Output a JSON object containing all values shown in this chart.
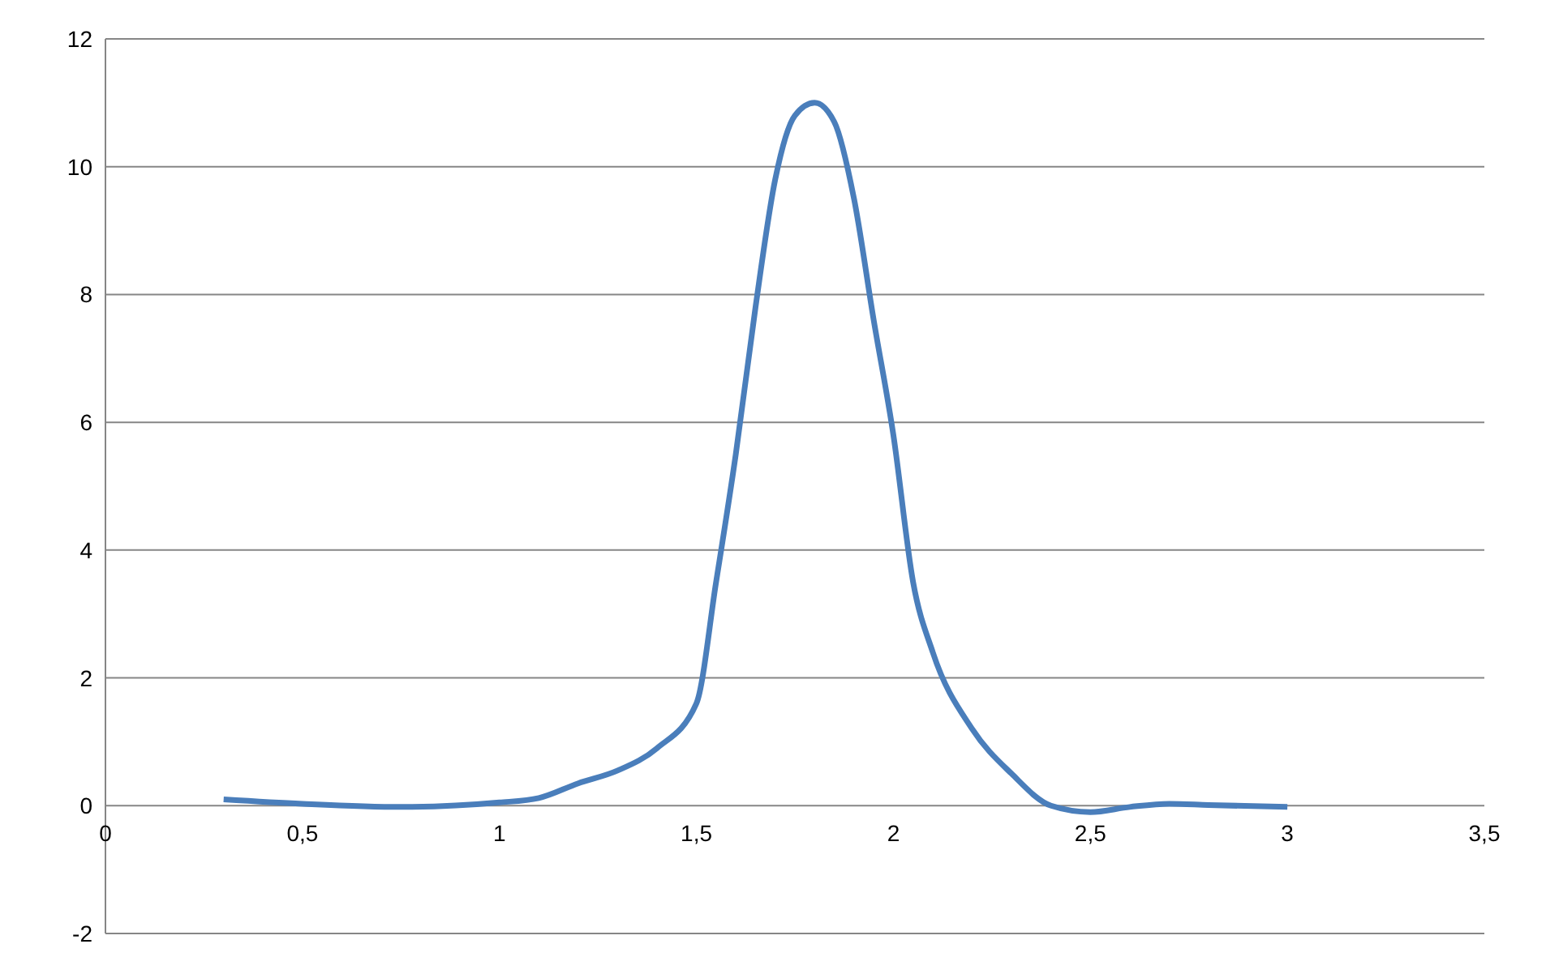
{
  "chart_data": {
    "type": "line",
    "x": [
      0.3,
      0.5,
      0.75,
      1.0,
      1.1,
      1.2,
      1.3,
      1.4,
      1.5,
      1.55,
      1.6,
      1.65,
      1.7,
      1.75,
      1.8,
      1.85,
      1.9,
      1.95,
      2.0,
      2.05,
      2.1,
      2.2,
      2.3,
      2.4,
      2.5,
      2.6,
      2.7,
      2.8,
      3.0
    ],
    "series": [
      {
        "color": "#4a7ebb",
        "values": [
          0.1,
          0.03,
          -0.02,
          0.05,
          0.12,
          0.35,
          0.55,
          0.9,
          1.6,
          3.5,
          5.5,
          7.8,
          9.8,
          10.8,
          11.0,
          10.7,
          9.5,
          7.6,
          5.8,
          3.5,
          2.4,
          1.2,
          0.5,
          0.0,
          -0.1,
          -0.02,
          0.03,
          0.01,
          -0.02
        ]
      }
    ],
    "xlim": [
      0,
      3.5
    ],
    "xticks": [
      0,
      {
        "value": 0.5,
        "label": "0,5"
      },
      1,
      {
        "value": 1.5,
        "label": "1,5"
      },
      2,
      {
        "value": 2.5,
        "label": "2,5"
      },
      3,
      {
        "value": 3.5,
        "label": "3,5"
      }
    ],
    "ylim": [
      -2,
      12
    ],
    "yticks": [
      -2,
      0,
      2,
      4,
      6,
      8,
      10,
      12
    ],
    "grid": "y",
    "marker": "none",
    "line_style": "solid"
  }
}
